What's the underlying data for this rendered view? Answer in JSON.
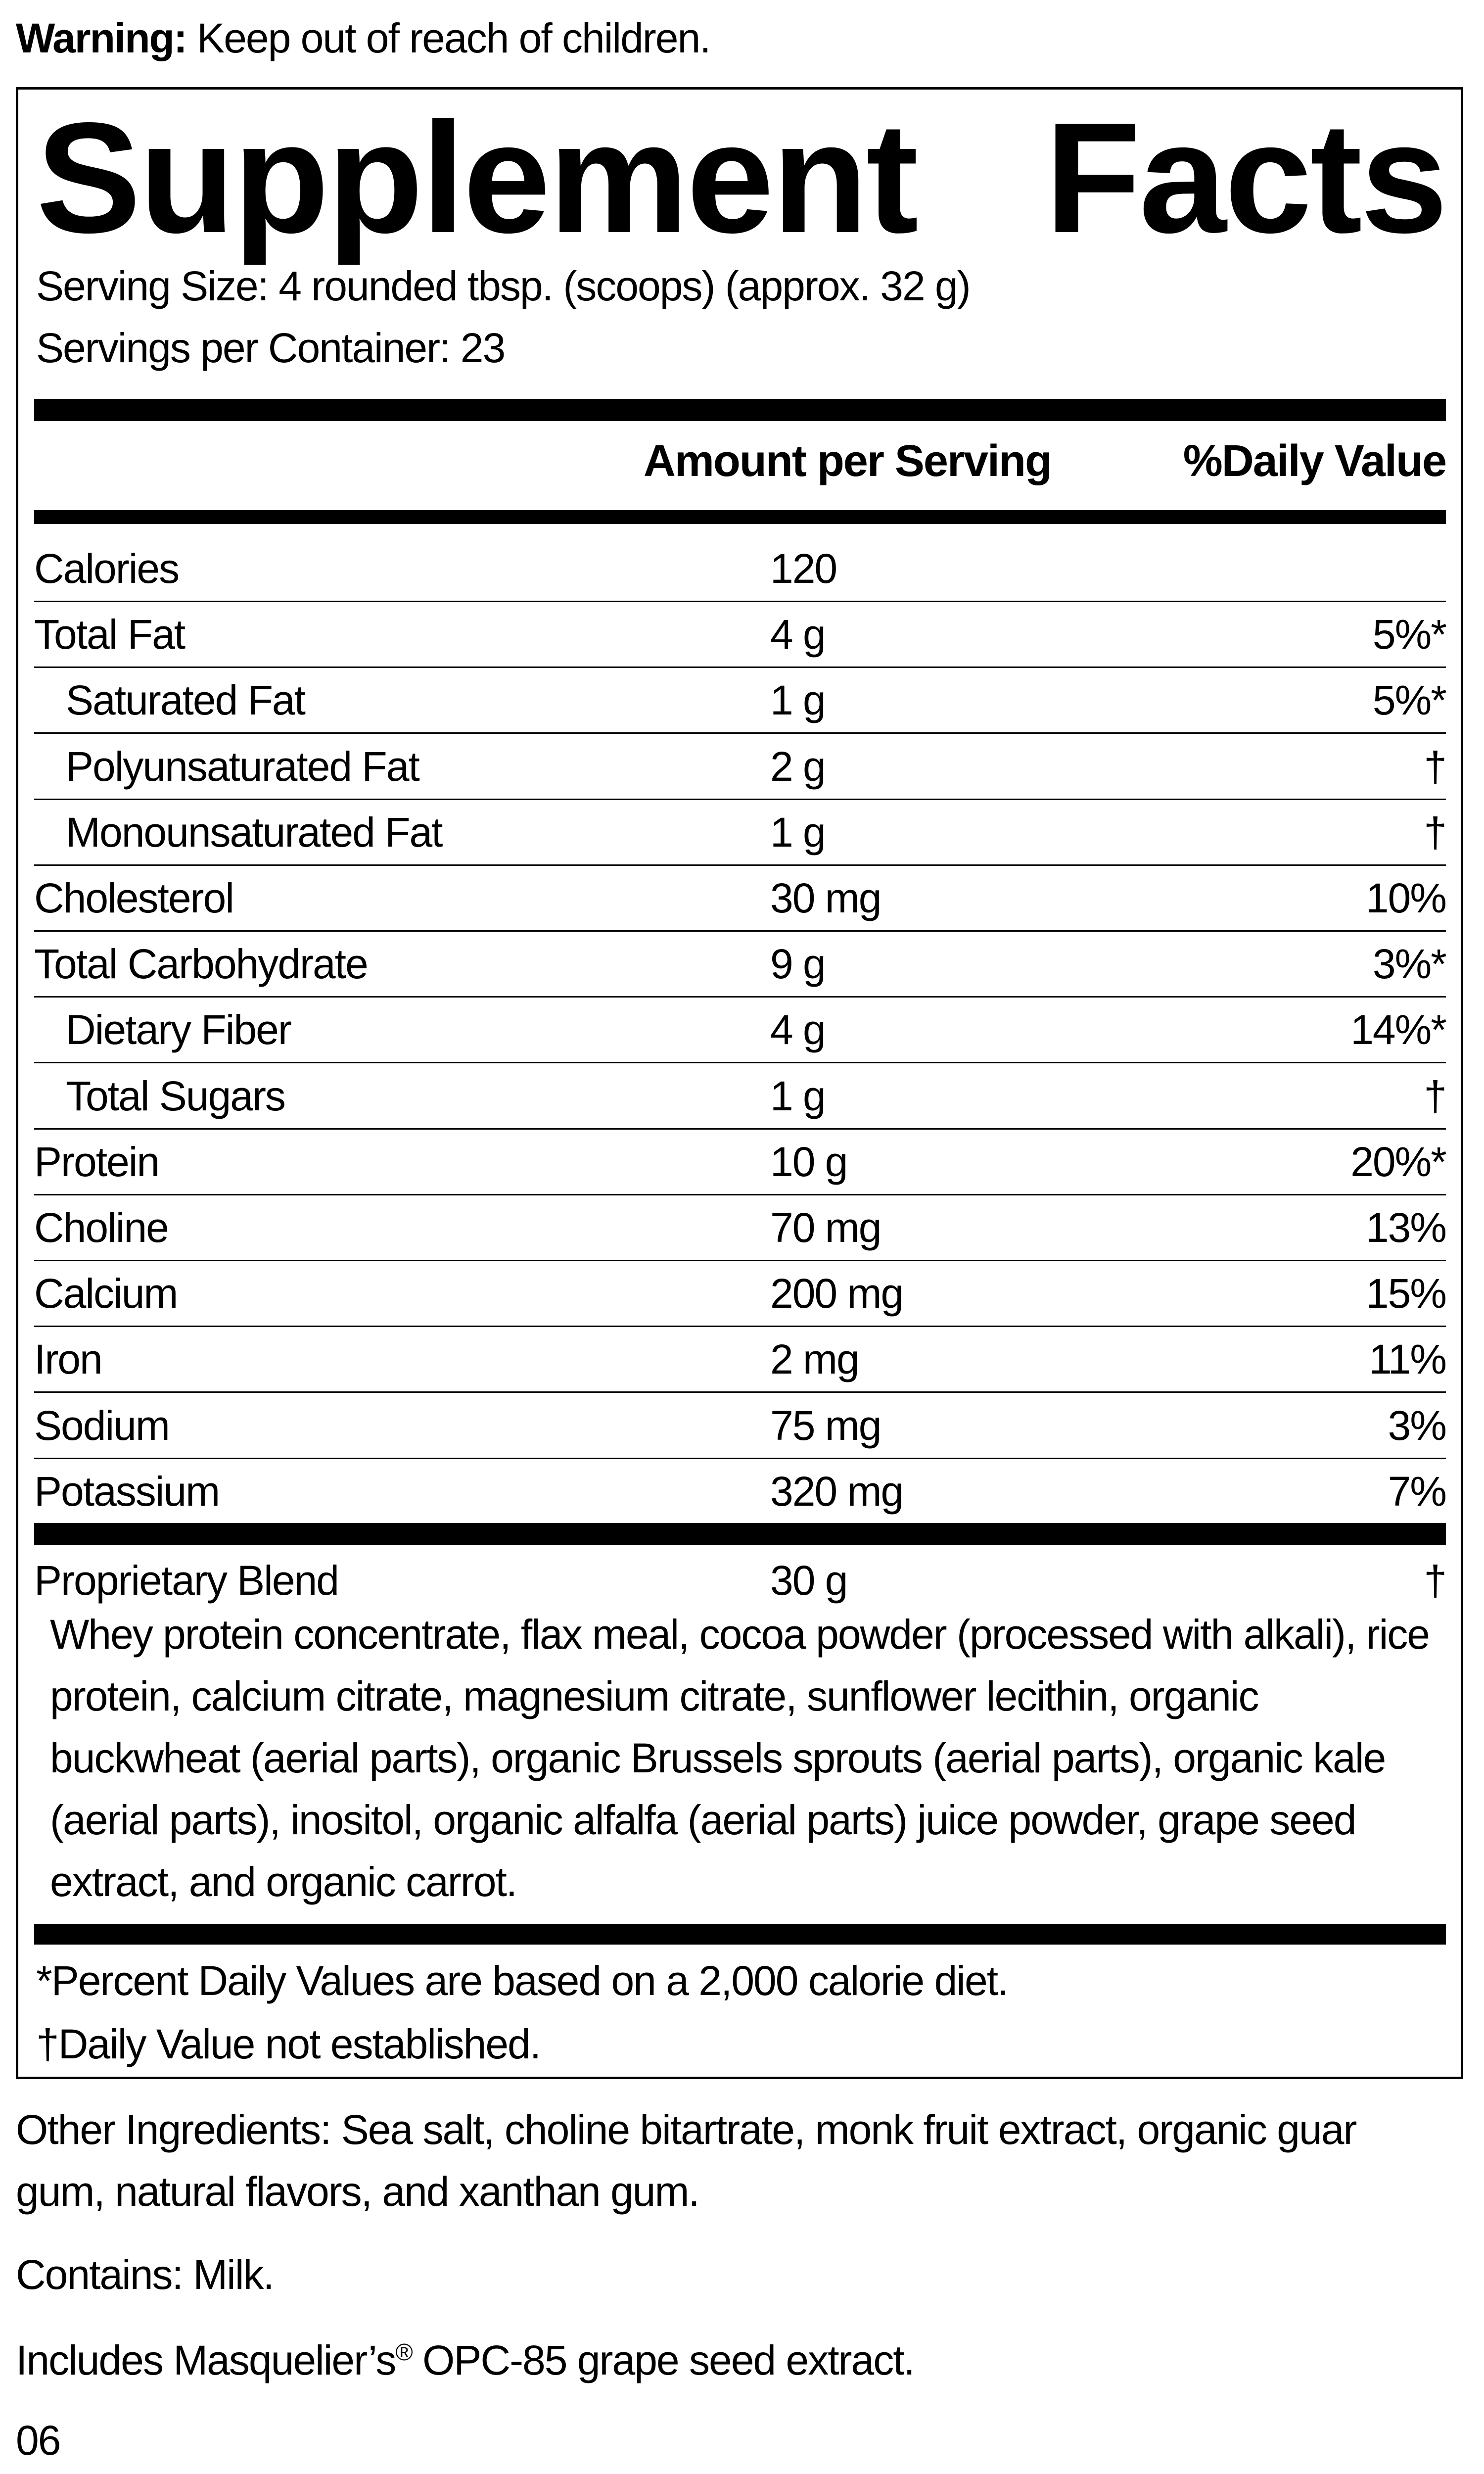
{
  "warning": {
    "label": "Warning:",
    "text": " Keep out of reach of children."
  },
  "title": {
    "word1": "Supplement",
    "word2": "Facts"
  },
  "serving_size": "Serving Size: 4 rounded tbsp. (scoops) (approx. 32 g)",
  "servings_per_container": "Servings per Container: 23",
  "headers": {
    "amount": "Amount per Serving",
    "dv": "%Daily Value"
  },
  "rows": [
    {
      "name": "Calories",
      "amount": "120",
      "dv": ""
    },
    {
      "name": "Total Fat",
      "amount": "4 g",
      "dv": "5%*"
    },
    {
      "name": "Saturated Fat",
      "amount": "1 g",
      "dv": "5%*"
    },
    {
      "name": "Polyunsaturated Fat",
      "amount": "2 g",
      "dv": "†"
    },
    {
      "name": "Monounsaturated Fat",
      "amount": "1 g",
      "dv": "†"
    },
    {
      "name": "Cholesterol",
      "amount": "30 mg",
      "dv": "10%"
    },
    {
      "name": "Total Carbohydrate",
      "amount": "9 g",
      "dv": "3%*"
    },
    {
      "name": "Dietary Fiber",
      "amount": "4 g",
      "dv": "14%*"
    },
    {
      "name": "Total Sugars",
      "amount": "1 g",
      "dv": "†"
    },
    {
      "name": "Protein",
      "amount": "10 g",
      "dv": "20%*"
    },
    {
      "name": "Choline",
      "amount": "70 mg",
      "dv": "13%"
    },
    {
      "name": "Calcium",
      "amount": "200 mg",
      "dv": "15%"
    },
    {
      "name": "Iron",
      "amount": "2 mg",
      "dv": "11%"
    },
    {
      "name": "Sodium",
      "amount": "75 mg",
      "dv": "3%"
    },
    {
      "name": "Potassium",
      "amount": "320 mg",
      "dv": "7%"
    }
  ],
  "blend": {
    "name": "Proprietary Blend",
    "amount": "30 g",
    "dv": "†",
    "ingredients": "Whey protein concentrate, flax meal, cocoa powder (processed with alkali), rice protein, calcium citrate, magnesium citrate, sunflower lecithin, organic buckwheat (aerial parts), organic Brussels sprouts (aerial parts), organic kale (aerial parts), inositol, organic alfalfa (aerial parts) juice powder, grape seed extract, and organic carrot."
  },
  "footnotes": {
    "pdv": "*Percent Daily Values are based on a 2,000 calorie diet.",
    "dagger": "†Daily Value not established."
  },
  "other_ingredients": "Other Ingredients: Sea salt, choline bitartrate, monk fruit extract, organic guar gum, natural flavors, and xanthan gum.",
  "contains": "Contains: Milk.",
  "includes": {
    "pre": "Includes Masquelier’s",
    "reg": "®",
    "post": " OPC-85 grape seed extract."
  },
  "code": "06"
}
